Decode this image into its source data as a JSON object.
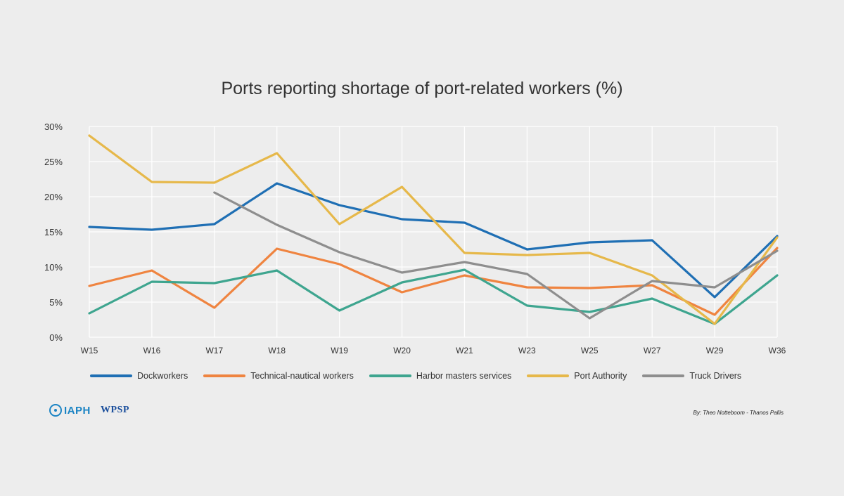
{
  "chart_data": {
    "type": "line",
    "title": "Ports reporting shortage of port-related workers (%)",
    "categories": [
      "W15",
      "W16",
      "W17",
      "W18",
      "W19",
      "W20",
      "W21",
      "W23",
      "W25",
      "W27",
      "W29",
      "W36"
    ],
    "y_ticks": [
      "0%",
      "5%",
      "10%",
      "15%",
      "20%",
      "25%",
      "30%"
    ],
    "ylim": [
      0,
      30
    ],
    "grid": true,
    "legend_position": "bottom",
    "series": [
      {
        "name": "Dockworkers",
        "color": "#1f6fb4",
        "values": [
          15.7,
          15.3,
          16.1,
          21.9,
          18.8,
          16.8,
          16.3,
          12.5,
          13.5,
          13.8,
          5.7,
          14.4
        ]
      },
      {
        "name": "Technical-nautical workers",
        "color": "#ef8440",
        "values": [
          7.3,
          9.5,
          4.2,
          12.6,
          10.4,
          6.4,
          8.8,
          7.1,
          7.0,
          7.4,
          3.2,
          12.7
        ]
      },
      {
        "name": "Harbor masters services",
        "color": "#3ea58f",
        "values": [
          3.4,
          7.9,
          7.7,
          9.5,
          3.8,
          7.8,
          9.6,
          4.5,
          3.6,
          5.5,
          1.9,
          8.8
        ]
      },
      {
        "name": "Port Authority",
        "color": "#e6b84a",
        "values": [
          28.7,
          22.1,
          22.0,
          26.2,
          16.1,
          21.4,
          12.0,
          11.7,
          12.0,
          8.8,
          1.9,
          14.2
        ]
      },
      {
        "name": "Truck Drivers",
        "color": "#8e8e8e",
        "values": [
          null,
          null,
          20.6,
          16.0,
          12.1,
          9.2,
          10.7,
          9.0,
          2.7,
          8.0,
          7.1,
          12.3
        ]
      }
    ]
  },
  "credit": "By: Theo Notteboom - Thanos Pallis",
  "logos": {
    "iaph": "IAPH",
    "wpsp": "WPSP"
  }
}
